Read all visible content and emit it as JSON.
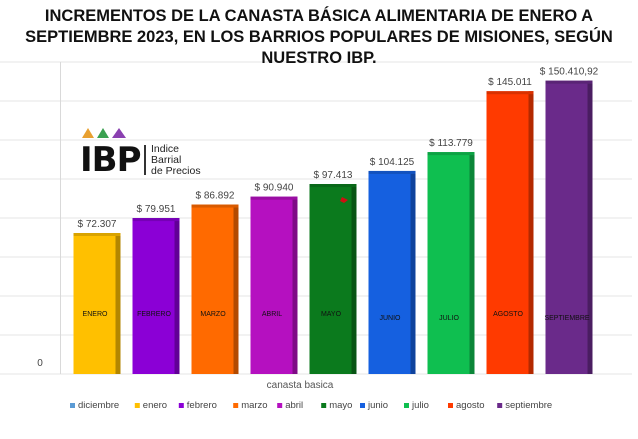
{
  "title_lines": [
    "INCREMENTOS DE LA CANASTA BÁSICA ALIMENTARIA DE ENERO A",
    "SEPTIEMBRE 2023, EN LOS BARRIOS POPULARES DE MISIONES, SEGÚN",
    "NUESTRO IBP."
  ],
  "logo": {
    "mark": "IBP",
    "text_lines": [
      "Indice",
      "Barrial",
      "de Precios"
    ],
    "triangle_colors": [
      "#e8a030",
      "#3aa050",
      "#8a40b0"
    ]
  },
  "chart_data": {
    "type": "bar",
    "xlabel": "canasta basica",
    "y_tick_labels": [
      "0"
    ],
    "ylim": [
      0,
      160000
    ],
    "grid": true,
    "legend_position": "bottom",
    "categories": [
      "ENERO",
      "FEBRERO",
      "MARZO",
      "ABRIL",
      "MAYO",
      "JUNIO",
      "JULIO",
      "AGOSTO",
      "SEPTIEMBRE"
    ],
    "values": [
      72307,
      79951,
      86892,
      90940,
      97413,
      104125,
      113779,
      145011,
      150410.92
    ],
    "data_labels": [
      "$ 72.307",
      "$ 79.951",
      "$ 86.892",
      "$ 90.940",
      "$ 97.413",
      "$ 104.125",
      "$ 113.779",
      "$ 145.011",
      "$ 150.410,92"
    ],
    "colors": [
      "#ffc000",
      "#8b00d6",
      "#ff6a00",
      "#b510c0",
      "#0b7a1d",
      "#1560e0",
      "#0fbf50",
      "#ff3a00",
      "#6a2a8a"
    ],
    "legend": [
      {
        "label": "diciembre",
        "color": "#5b9bd5"
      },
      {
        "label": "enero",
        "color": "#ffc000"
      },
      {
        "label": "febrero",
        "color": "#8b00d6"
      },
      {
        "label": "marzo",
        "color": "#ff6a00"
      },
      {
        "label": "abril",
        "color": "#b510c0"
      },
      {
        "label": "mayo",
        "color": "#0b7a1d"
      },
      {
        "label": "junio",
        "color": "#1560e0"
      },
      {
        "label": "julio",
        "color": "#0fbf50"
      },
      {
        "label": "agosto",
        "color": "#ff3a00"
      },
      {
        "label": "septiembre",
        "color": "#6a2a8a"
      }
    ]
  }
}
